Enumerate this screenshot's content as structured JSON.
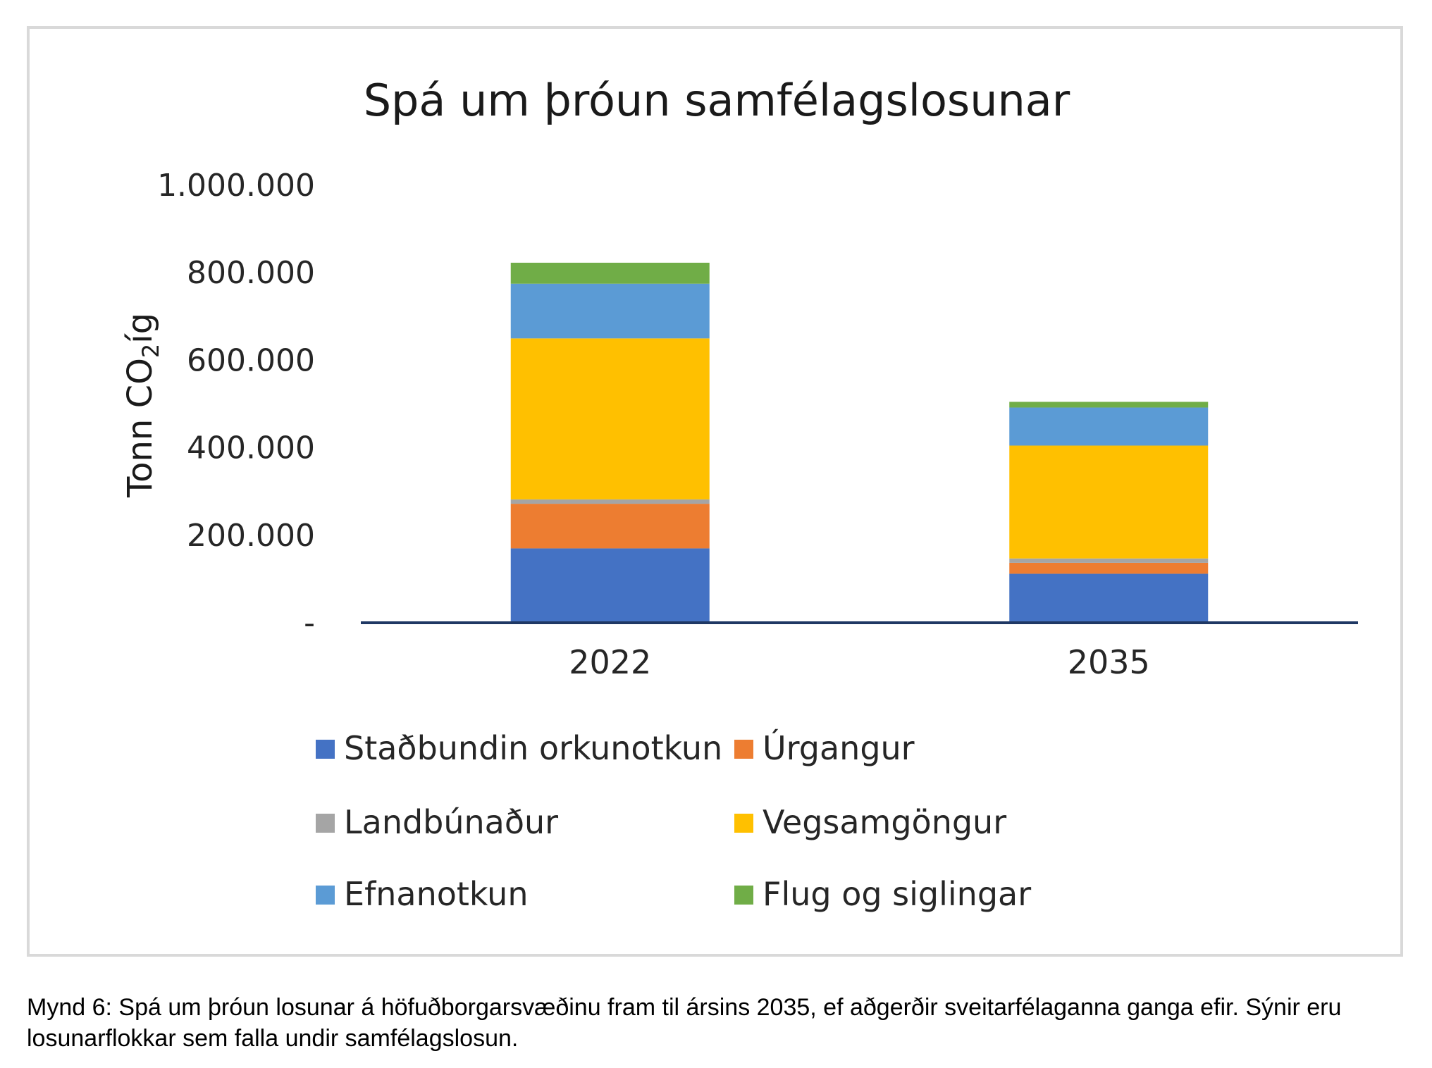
{
  "chart_data": {
    "type": "bar",
    "stacked": true,
    "title": "Spá um þróun samfélagslosunar",
    "ylabel_main": "Tonn CO",
    "ylabel_sub": "2",
    "ylabel_tail": "íg",
    "xlabel": "",
    "ylim": [
      0,
      1000000
    ],
    "yticks": [
      {
        "value": 0,
        "label": "-"
      },
      {
        "value": 200000,
        "label": "200.000"
      },
      {
        "value": 400000,
        "label": "400.000"
      },
      {
        "value": 600000,
        "label": "600.000"
      },
      {
        "value": 800000,
        "label": "800.000"
      },
      {
        "value": 1000000,
        "label": "1.000.000"
      }
    ],
    "grid": false,
    "legend_position": "bottom",
    "categories": [
      "2022",
      "2035"
    ],
    "series": [
      {
        "name": "Staðbundin orkunotkun",
        "color": "#4472c4",
        "values": [
          170000,
          112000
        ]
      },
      {
        "name": "Úrgangur",
        "color": "#ed7d31",
        "values": [
          102000,
          25000
        ]
      },
      {
        "name": "Landbúnaður",
        "color": "#a5a5a5",
        "values": [
          10000,
          10000
        ]
      },
      {
        "name": "Vegsamgöngur",
        "color": "#ffc000",
        "values": [
          368000,
          258000
        ]
      },
      {
        "name": "Efnanotkun",
        "color": "#5b9bd5",
        "values": [
          125000,
          87000
        ]
      },
      {
        "name": "Flug og siglingar",
        "color": "#70ad47",
        "values": [
          48000,
          13000
        ]
      }
    ],
    "axis_color": "#1f3864"
  },
  "caption": "Mynd 6: Spá um þróun losunar á höfuðborgarsvæðinu fram til ársins 2035, ef aðgerðir sveitarfélaganna ganga efir. Sýnir eru losunarflokkar sem falla undir samfélagslosun."
}
